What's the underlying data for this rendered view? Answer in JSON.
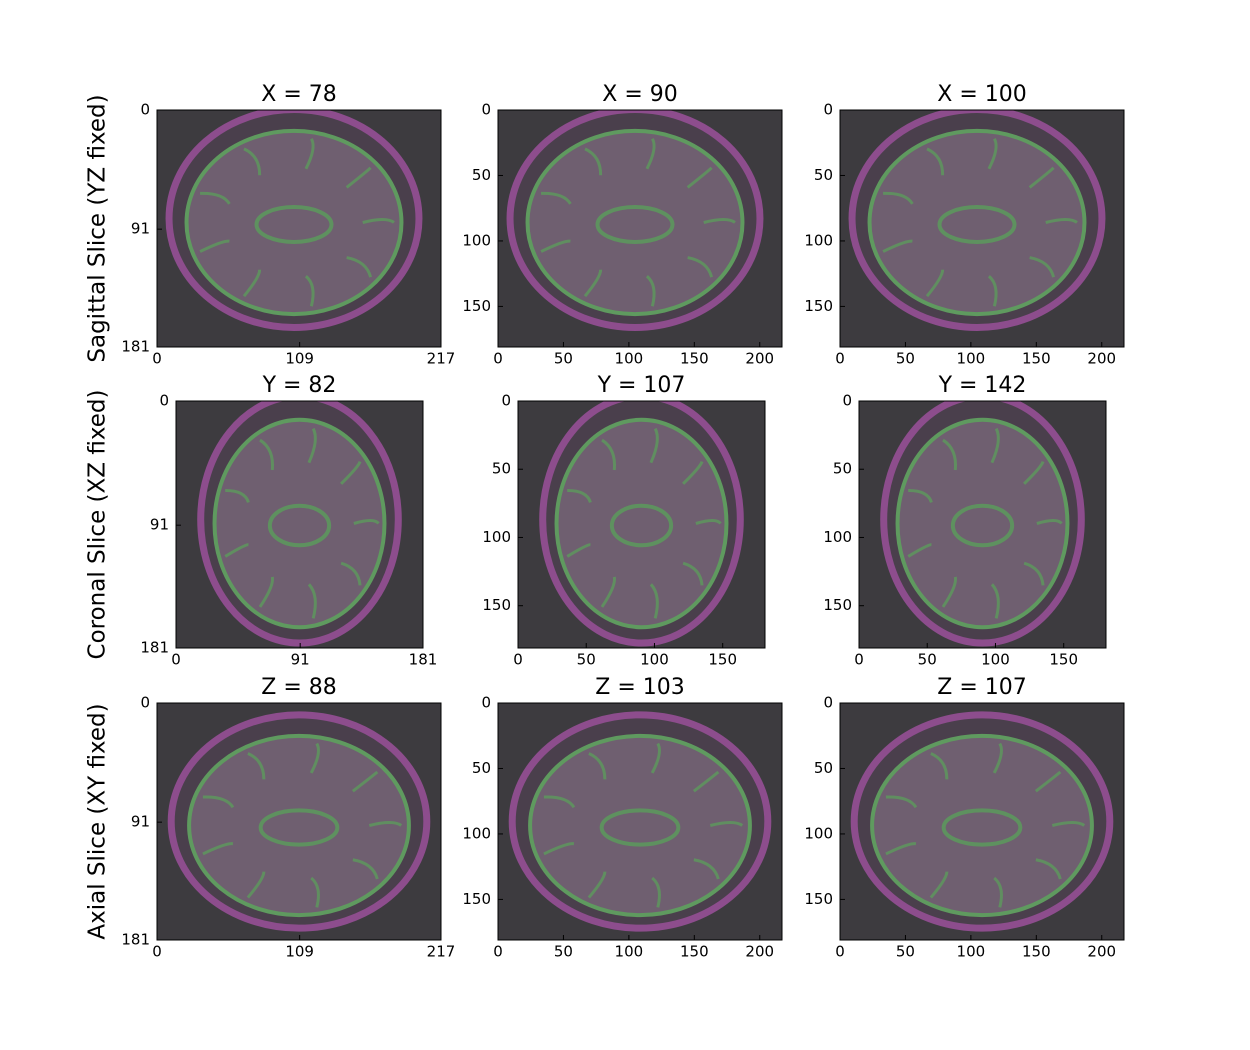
{
  "rows": [
    {
      "label": "Sagittal Slice (YZ fixed)",
      "panels": [
        {
          "title": "X = 78",
          "xlim": [
            0,
            217
          ],
          "ylim": [
            181,
            0
          ],
          "xticks": [
            0,
            109,
            217
          ],
          "yticks": [
            0,
            91,
            181
          ]
        },
        {
          "title": "X = 90",
          "xlim": [
            0,
            217
          ],
          "ylim": [
            181,
            0
          ],
          "xticks": [
            0,
            50,
            100,
            150,
            200
          ],
          "yticks": [
            0,
            50,
            100,
            150
          ]
        },
        {
          "title": "X = 100",
          "xlim": [
            0,
            217
          ],
          "ylim": [
            181,
            0
          ],
          "xticks": [
            0,
            50,
            100,
            150,
            200
          ],
          "yticks": [
            0,
            50,
            100,
            150
          ]
        }
      ]
    },
    {
      "label": "Coronal Slice (XZ fixed)",
      "panels": [
        {
          "title": "Y = 82",
          "xlim": [
            0,
            181
          ],
          "ylim": [
            181,
            0
          ],
          "xticks": [
            0,
            91,
            181
          ],
          "yticks": [
            0,
            91,
            181
          ]
        },
        {
          "title": "Y = 107",
          "xlim": [
            0,
            181
          ],
          "ylim": [
            181,
            0
          ],
          "xticks": [
            0,
            50,
            100,
            150
          ],
          "yticks": [
            0,
            50,
            100,
            150
          ]
        },
        {
          "title": "Y = 142",
          "xlim": [
            0,
            181
          ],
          "ylim": [
            181,
            0
          ],
          "xticks": [
            0,
            50,
            100,
            150
          ],
          "yticks": [
            0,
            50,
            100,
            150
          ]
        }
      ]
    },
    {
      "label": "Axial Slice (XY fixed)",
      "panels": [
        {
          "title": "Z = 88",
          "xlim": [
            0,
            217
          ],
          "ylim": [
            181,
            0
          ],
          "xticks": [
            0,
            109,
            217
          ],
          "yticks": [
            0,
            91,
            181
          ]
        },
        {
          "title": "Z = 103",
          "xlim": [
            0,
            217
          ],
          "ylim": [
            181,
            0
          ],
          "xticks": [
            0,
            50,
            100,
            150,
            200
          ],
          "yticks": [
            0,
            50,
            100,
            150
          ]
        },
        {
          "title": "Z = 107",
          "xlim": [
            0,
            217
          ],
          "ylim": [
            181,
            0
          ],
          "xticks": [
            0,
            50,
            100,
            150,
            200
          ],
          "yticks": [
            0,
            50,
            100,
            150
          ]
        }
      ]
    }
  ]
}
